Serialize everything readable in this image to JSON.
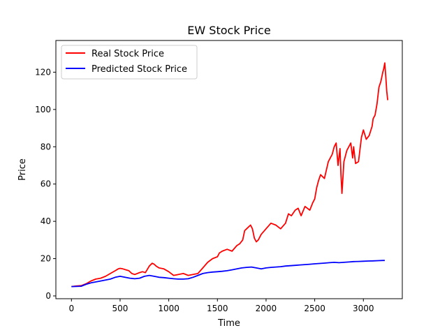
{
  "chart_data": {
    "type": "line",
    "title": "EW Stock Price",
    "xlabel": "Time",
    "ylabel": "Price",
    "xlim": [
      -160,
      3400
    ],
    "ylim": [
      -1.5,
      137
    ],
    "xticks": [
      0,
      500,
      1000,
      1500,
      2000,
      2500,
      3000
    ],
    "yticks": [
      0,
      20,
      40,
      60,
      80,
      100,
      120
    ],
    "grid": false,
    "legend": "top-left",
    "series": [
      {
        "name": "Real Stock Price",
        "color": "#ff0000",
        "x": [
          0,
          50,
          100,
          150,
          200,
          250,
          300,
          350,
          400,
          450,
          480,
          500,
          530,
          560,
          590,
          620,
          650,
          700,
          730,
          760,
          800,
          830,
          850,
          870,
          900,
          950,
          1000,
          1050,
          1100,
          1150,
          1200,
          1250,
          1300,
          1350,
          1400,
          1450,
          1500,
          1520,
          1550,
          1600,
          1650,
          1700,
          1730,
          1760,
          1780,
          1800,
          1840,
          1860,
          1880,
          1900,
          1920,
          1950,
          2000,
          2050,
          2100,
          2150,
          2200,
          2230,
          2260,
          2300,
          2330,
          2360,
          2400,
          2450,
          2480,
          2500,
          2520,
          2540,
          2560,
          2600,
          2640,
          2680,
          2700,
          2720,
          2740,
          2760,
          2770,
          2780,
          2800,
          2830,
          2850,
          2870,
          2890,
          2900,
          2920,
          2950,
          2980,
          3000,
          3030,
          3060,
          3090,
          3100,
          3120,
          3140,
          3160,
          3180,
          3200,
          3210,
          3220,
          3230,
          3240,
          3250
        ],
        "y": [
          5,
          5.3,
          5.5,
          6.5,
          8,
          9,
          9.5,
          10.5,
          12,
          13.5,
          14.5,
          14.8,
          14.5,
          14,
          13.5,
          12,
          11.5,
          12.5,
          13,
          12.5,
          16,
          17.5,
          17,
          16,
          15,
          14.5,
          13,
          11,
          11.5,
          12,
          11,
          11.5,
          12,
          15,
          18,
          20,
          21,
          23,
          24,
          25,
          24,
          27,
          28,
          30,
          35,
          36,
          38,
          36,
          31,
          29,
          30,
          33,
          36,
          39,
          38,
          36,
          39,
          44,
          43,
          46,
          47,
          43,
          48,
          46,
          50,
          52,
          58,
          62,
          65,
          63,
          72,
          76,
          80,
          82,
          70,
          79,
          65,
          55,
          72,
          78,
          80,
          82,
          74,
          80,
          71,
          72,
          85,
          89,
          84,
          86,
          91,
          95,
          97,
          103,
          112,
          115,
          120,
          122,
          125,
          118,
          110,
          105
        ]
      },
      {
        "name": "Predicted Stock Price",
        "color": "#0000ff",
        "x": [
          0,
          100,
          150,
          200,
          300,
          400,
          450,
          500,
          550,
          600,
          650,
          700,
          750,
          800,
          850,
          900,
          950,
          1000,
          1050,
          1100,
          1150,
          1200,
          1250,
          1300,
          1350,
          1400,
          1450,
          1500,
          1550,
          1600,
          1650,
          1700,
          1750,
          1800,
          1850,
          1900,
          1950,
          2000,
          2050,
          2100,
          2150,
          2200,
          2250,
          2300,
          2350,
          2400,
          2450,
          2500,
          2550,
          2600,
          2650,
          2700,
          2750,
          2800,
          2850,
          2900,
          2950,
          3000,
          3050,
          3100,
          3150,
          3200,
          3220
        ],
        "y": [
          5,
          5.2,
          6.2,
          7,
          8,
          9,
          10,
          10.5,
          10,
          9.5,
          9.2,
          9.5,
          10.5,
          11,
          10.5,
          10,
          9.8,
          9.5,
          9.2,
          9,
          9,
          9.2,
          10,
          11,
          12,
          12.5,
          12.8,
          13,
          13.2,
          13.5,
          14,
          14.5,
          15,
          15.3,
          15.5,
          15,
          14.5,
          15,
          15.3,
          15.5,
          15.7,
          16,
          16.2,
          16.4,
          16.6,
          16.8,
          17,
          17.2,
          17.4,
          17.6,
          17.8,
          18,
          17.8,
          18,
          18.2,
          18.4,
          18.5,
          18.6,
          18.7,
          18.8,
          18.9,
          19,
          19
        ]
      }
    ]
  }
}
